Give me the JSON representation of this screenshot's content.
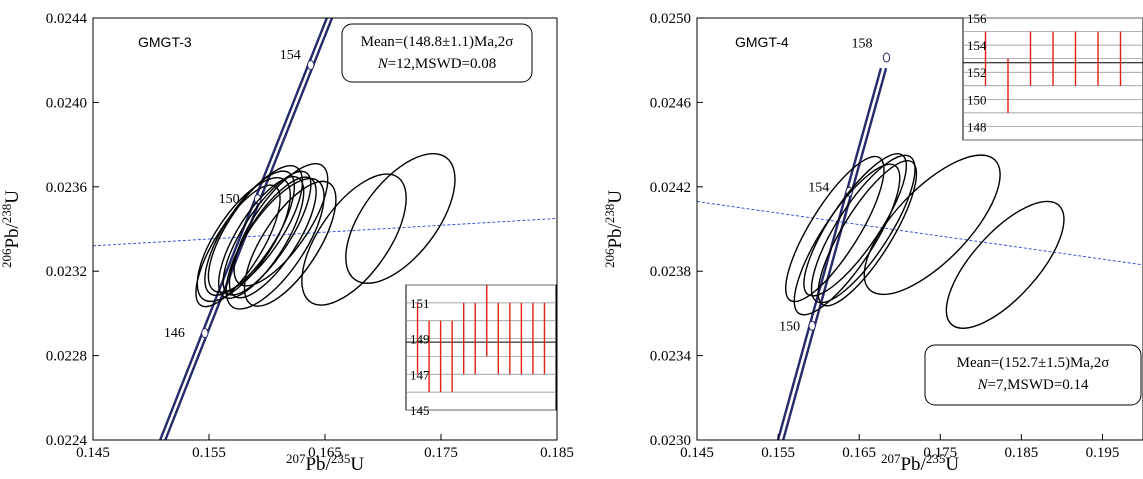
{
  "chart_data": [
    {
      "type": "scatter",
      "subtype": "concordia-diagram",
      "sample": "GMGT-3",
      "xlabel": {
        "mass": "207",
        "element": "Pb",
        "sep": "/",
        "mass2": "235",
        "element2": "U"
      },
      "ylabel": {
        "mass": "206",
        "element": "Pb",
        "sep": "/",
        "mass2": "238",
        "element2": "U"
      },
      "xlim": [
        0.145,
        0.185
      ],
      "ylim": [
        0.0224,
        0.0244
      ],
      "xticks": [
        "0.145",
        "0.155",
        "0.165",
        "0.175",
        "0.185"
      ],
      "yticks": [
        "0.0224",
        "0.0228",
        "0.0232",
        "0.0236",
        "0.0240",
        "0.0244"
      ],
      "concordia_ages": [
        "146",
        "150",
        "154"
      ],
      "concordia_age_values": [
        146,
        150,
        154
      ],
      "concordia_range": [
        0.1497,
        0.1667
      ],
      "discordia": {
        "x": [
          0.145,
          0.185
        ],
        "y": [
          0.02332,
          0.02345
        ]
      },
      "ellipses": [
        {
          "x": 0.1575,
          "y": 0.02332,
          "rx": 0.002,
          "ry": 0.00035,
          "angle": 78
        },
        {
          "x": 0.158,
          "y": 0.02335,
          "rx": 0.0024,
          "ry": 0.00036,
          "angle": 76
        },
        {
          "x": 0.1585,
          "y": 0.02338,
          "rx": 0.0022,
          "ry": 0.00036,
          "angle": 77
        },
        {
          "x": 0.159,
          "y": 0.0234,
          "rx": 0.0023,
          "ry": 0.00037,
          "angle": 76
        },
        {
          "x": 0.1595,
          "y": 0.02336,
          "rx": 0.0021,
          "ry": 0.00035,
          "angle": 78
        },
        {
          "x": 0.16,
          "y": 0.02338,
          "rx": 0.002,
          "ry": 0.00036,
          "angle": 77
        },
        {
          "x": 0.1605,
          "y": 0.02336,
          "rx": 0.0021,
          "ry": 0.00035,
          "angle": 77
        },
        {
          "x": 0.1607,
          "y": 0.02333,
          "rx": 0.0025,
          "ry": 0.00038,
          "angle": 76
        },
        {
          "x": 0.1612,
          "y": 0.02342,
          "rx": 0.0023,
          "ry": 0.00036,
          "angle": 75
        },
        {
          "x": 0.162,
          "y": 0.02333,
          "rx": 0.0024,
          "ry": 0.00036,
          "angle": 77
        },
        {
          "x": 0.1675,
          "y": 0.02335,
          "rx": 0.003,
          "ry": 0.00038,
          "angle": 75
        },
        {
          "x": 0.1715,
          "y": 0.02345,
          "rx": 0.0032,
          "ry": 0.00038,
          "angle": 73
        }
      ],
      "stats": {
        "line1": "Mean=(148.8±1.1)Ma,2σ",
        "line2_label": "N",
        "line2_rest": "=12,MSWD=0.08"
      },
      "inset": {
        "ylim": [
          145,
          152
        ],
        "yticks": [
          "145",
          "147",
          "149",
          "151"
        ],
        "mean": 148.8,
        "values": [
          149,
          148,
          148,
          148,
          149,
          149,
          150,
          149,
          149,
          149,
          149,
          149
        ],
        "errors": [
          2,
          2,
          2,
          2,
          2,
          2,
          2,
          2,
          2,
          2,
          2,
          2
        ]
      }
    },
    {
      "type": "scatter",
      "subtype": "concordia-diagram",
      "sample": "GMGT-4",
      "xlabel": {
        "mass": "207",
        "element": "Pb",
        "sep": "/",
        "mass2": "235",
        "element2": "U"
      },
      "ylabel": {
        "mass": "206",
        "element": "Pb",
        "sep": "/",
        "mass2": "238",
        "element2": "U"
      },
      "xlim": [
        0.145,
        0.2
      ],
      "ylim": [
        0.023,
        0.025
      ],
      "xticks": [
        "0.145",
        "0.155",
        "0.165",
        "0.175",
        "0.185",
        "0.195"
      ],
      "yticks": [
        "0.0230",
        "0.0234",
        "0.0238",
        "0.0242",
        "0.0246",
        "0.0250"
      ],
      "concordia_ages": [
        "150",
        "154",
        "158"
      ],
      "concordia_age_values": [
        150,
        154,
        158
      ],
      "concordia_range": [
        0.1532,
        0.168
      ],
      "discordia": {
        "x": [
          0.145,
          0.2
        ],
        "y": [
          0.02413,
          0.02383
        ]
      },
      "ellipses": [
        {
          "x": 0.162,
          "y": 0.024,
          "rx": 0.003,
          "ry": 0.00042,
          "angle": 78
        },
        {
          "x": 0.1635,
          "y": 0.02395,
          "rx": 0.0032,
          "ry": 0.00044,
          "angle": 77
        },
        {
          "x": 0.1645,
          "y": 0.02402,
          "rx": 0.003,
          "ry": 0.00042,
          "angle": 76
        },
        {
          "x": 0.1655,
          "y": 0.024,
          "rx": 0.0032,
          "ry": 0.00043,
          "angle": 77
        },
        {
          "x": 0.166,
          "y": 0.02398,
          "rx": 0.003,
          "ry": 0.00042,
          "angle": 78
        },
        {
          "x": 0.174,
          "y": 0.02402,
          "rx": 0.0045,
          "ry": 0.00045,
          "angle": 66
        },
        {
          "x": 0.183,
          "y": 0.02383,
          "rx": 0.004,
          "ry": 0.0004,
          "angle": 68
        }
      ],
      "stats": {
        "line1": "Mean=(152.7±1.5)Ma,2σ",
        "line2_label": "N",
        "line2_rest": "=7,MSWD=0.14"
      },
      "inset": {
        "ylim": [
          147,
          156
        ],
        "yticks": [
          "148",
          "150",
          "152",
          "154",
          "156"
        ],
        "mean": 152.7,
        "values": [
          153,
          151,
          153,
          153,
          153,
          153,
          153
        ],
        "errors": [
          2,
          2,
          2,
          2,
          2,
          2,
          2
        ]
      }
    }
  ]
}
